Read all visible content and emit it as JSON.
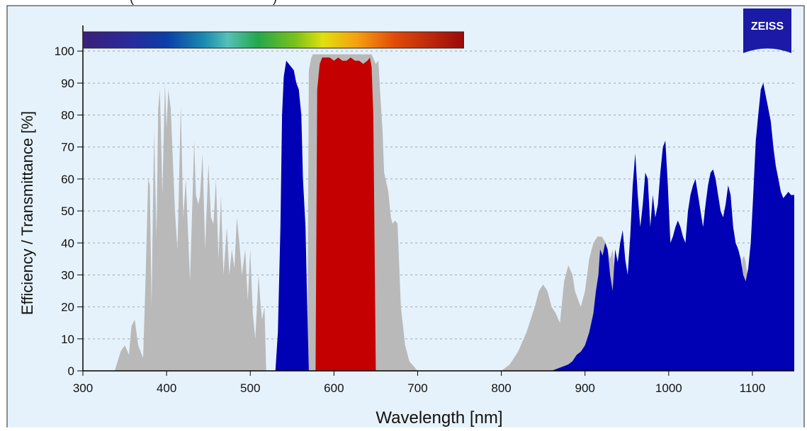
{
  "header": {
    "caption": "(",
    "caption_close": ")"
  },
  "logo": {
    "text": "ZEISS",
    "color": "#1a1aa6"
  },
  "chart_data": {
    "type": "area",
    "xlabel": "Wavelength [nm]",
    "ylabel": "Efficiency / Transmittance [%]",
    "xlim": [
      300,
      1150
    ],
    "ylim": [
      0,
      108
    ],
    "xticks": [
      300,
      400,
      500,
      600,
      700,
      800,
      900,
      1000,
      1100
    ],
    "yticks": [
      0,
      10,
      20,
      30,
      40,
      50,
      60,
      70,
      80,
      90,
      100
    ],
    "grid": "horizontal-dashed",
    "colors": {
      "plot_bg": "#e6f2fb",
      "gray": "#b9b9b9",
      "blue": "#0000b4",
      "red": "#c40000"
    },
    "spectrum_bar": {
      "range": [
        300,
        755
      ]
    },
    "series": [
      {
        "fill": "#b9b9b9",
        "x": [
          338,
          345,
          350,
          355,
          358,
          362,
          366,
          372,
          375,
          378,
          380,
          382,
          385,
          388,
          390,
          392,
          395,
          398,
          400,
          402,
          405,
          410,
          413,
          417,
          420,
          423,
          428,
          433,
          435,
          438,
          440,
          443,
          446,
          450,
          453,
          456,
          459,
          462,
          465,
          468,
          472,
          475,
          478,
          481,
          484,
          487,
          490,
          494,
          497,
          500,
          503,
          506,
          510,
          512,
          514,
          517,
          519,
          522,
          525,
          528,
          530,
          532,
          535,
          540,
          545,
          550,
          555,
          560,
          565,
          568,
          570,
          573,
          575,
          580,
          590,
          600,
          610,
          620,
          630,
          640,
          645,
          650,
          653,
          655,
          658,
          660,
          665,
          668,
          670,
          673,
          676,
          680,
          685,
          690,
          700,
          710,
          780,
          800,
          810,
          820,
          830,
          840,
          845,
          850,
          855,
          860,
          865,
          870,
          875,
          880,
          885,
          888,
          892,
          895,
          900,
          905,
          910,
          915,
          920,
          925,
          930,
          933,
          936,
          940,
          945,
          950,
          955,
          960,
          970,
          980,
          990,
          1000,
          1010,
          1020,
          1030,
          1040,
          1050,
          1060,
          1070,
          1080,
          1085,
          1088,
          1090,
          1092,
          1095,
          1098,
          1100,
          1110,
          1120,
          1130,
          1140,
          1150
        ],
        "values": [
          0,
          6,
          8,
          5,
          14,
          16,
          8,
          4,
          30,
          60,
          58,
          20,
          75,
          42,
          82,
          88,
          55,
          90,
          76,
          88,
          82,
          50,
          38,
          83,
          48,
          60,
          28,
          72,
          55,
          52,
          55,
          68,
          38,
          65,
          48,
          46,
          60,
          35,
          55,
          30,
          45,
          30,
          38,
          32,
          48,
          40,
          30,
          38,
          22,
          38,
          18,
          10,
          30,
          22,
          16,
          20,
          0,
          0,
          0,
          0,
          0,
          0,
          0,
          0,
          0,
          0,
          0,
          0,
          0,
          0,
          94,
          98,
          99,
          99,
          99,
          99,
          99,
          99,
          99,
          99,
          99,
          96,
          97,
          88,
          75,
          62,
          56,
          48,
          46,
          47,
          46,
          20,
          8,
          3,
          0,
          0,
          0,
          0,
          2,
          6,
          12,
          20,
          25,
          27,
          25,
          20,
          18,
          15,
          28,
          33,
          30,
          25,
          22,
          20,
          25,
          35,
          40,
          42,
          42,
          40,
          35,
          38,
          30,
          32,
          30,
          22,
          20,
          18,
          15,
          12,
          10,
          8,
          10,
          10,
          12,
          12,
          10,
          8,
          10,
          10,
          12,
          35,
          36,
          34,
          28,
          30,
          0,
          0,
          0,
          0,
          0,
          0
        ]
      },
      {
        "fill": "#0000b4",
        "x": [
          530,
          533,
          536,
          538,
          540,
          543,
          546,
          549,
          552,
          555,
          558,
          561,
          563,
          566,
          568,
          570,
          572,
          575,
          578,
          580,
          582,
          585,
          588,
          590
        ],
        "values": [
          0,
          12,
          45,
          80,
          92,
          97,
          96,
          95,
          94,
          90,
          88,
          80,
          60,
          45,
          20,
          0,
          0,
          0,
          0,
          0,
          0,
          0,
          0,
          0
        ],
        "comment_segment": "first blue band"
      },
      {
        "fill": "#0000b4",
        "x": [
          860,
          870,
          880,
          885,
          890,
          895,
          900,
          905,
          910,
          913,
          916,
          918,
          921,
          924,
          927,
          930,
          933,
          936,
          939,
          942,
          945,
          948,
          951,
          954,
          957,
          960,
          963,
          966,
          969,
          972,
          975,
          978,
          981,
          984,
          987,
          990,
          993,
          996,
          999,
          1002,
          1005,
          1008,
          1011,
          1014,
          1017,
          1020,
          1023,
          1026,
          1029,
          1032,
          1035,
          1038,
          1041,
          1044,
          1047,
          1050,
          1053,
          1056,
          1059,
          1062,
          1065,
          1068,
          1071,
          1074,
          1077,
          1080,
          1083,
          1086,
          1089,
          1092,
          1095,
          1098,
          1101,
          1104,
          1107,
          1110,
          1113,
          1116,
          1119,
          1122,
          1125,
          1128,
          1131,
          1134,
          1137,
          1140,
          1143,
          1146,
          1150
        ],
        "values": [
          0,
          1,
          2,
          3,
          5,
          6,
          8,
          12,
          18,
          25,
          30,
          38,
          36,
          40,
          38,
          30,
          25,
          38,
          34,
          40,
          44,
          35,
          30,
          42,
          58,
          68,
          55,
          45,
          52,
          62,
          60,
          45,
          55,
          48,
          52,
          62,
          70,
          72,
          58,
          40,
          42,
          45,
          47,
          45,
          42,
          40,
          50,
          55,
          58,
          60,
          55,
          50,
          45,
          52,
          58,
          62,
          63,
          60,
          55,
          50,
          48,
          52,
          58,
          55,
          45,
          40,
          38,
          35,
          30,
          28,
          32,
          40,
          55,
          72,
          80,
          88,
          90,
          86,
          82,
          78,
          70,
          64,
          60,
          56,
          54,
          55,
          56,
          55,
          55
        ]
      },
      {
        "fill": "#c40000",
        "x": [
          578,
          580,
          583,
          586,
          590,
          595,
          600,
          605,
          610,
          615,
          620,
          625,
          630,
          635,
          640,
          643,
          645,
          647,
          650
        ],
        "values": [
          0,
          88,
          96,
          98,
          98,
          98,
          97,
          98,
          97,
          97,
          98,
          97,
          97,
          96,
          97,
          98,
          95,
          80,
          0
        ]
      }
    ]
  }
}
